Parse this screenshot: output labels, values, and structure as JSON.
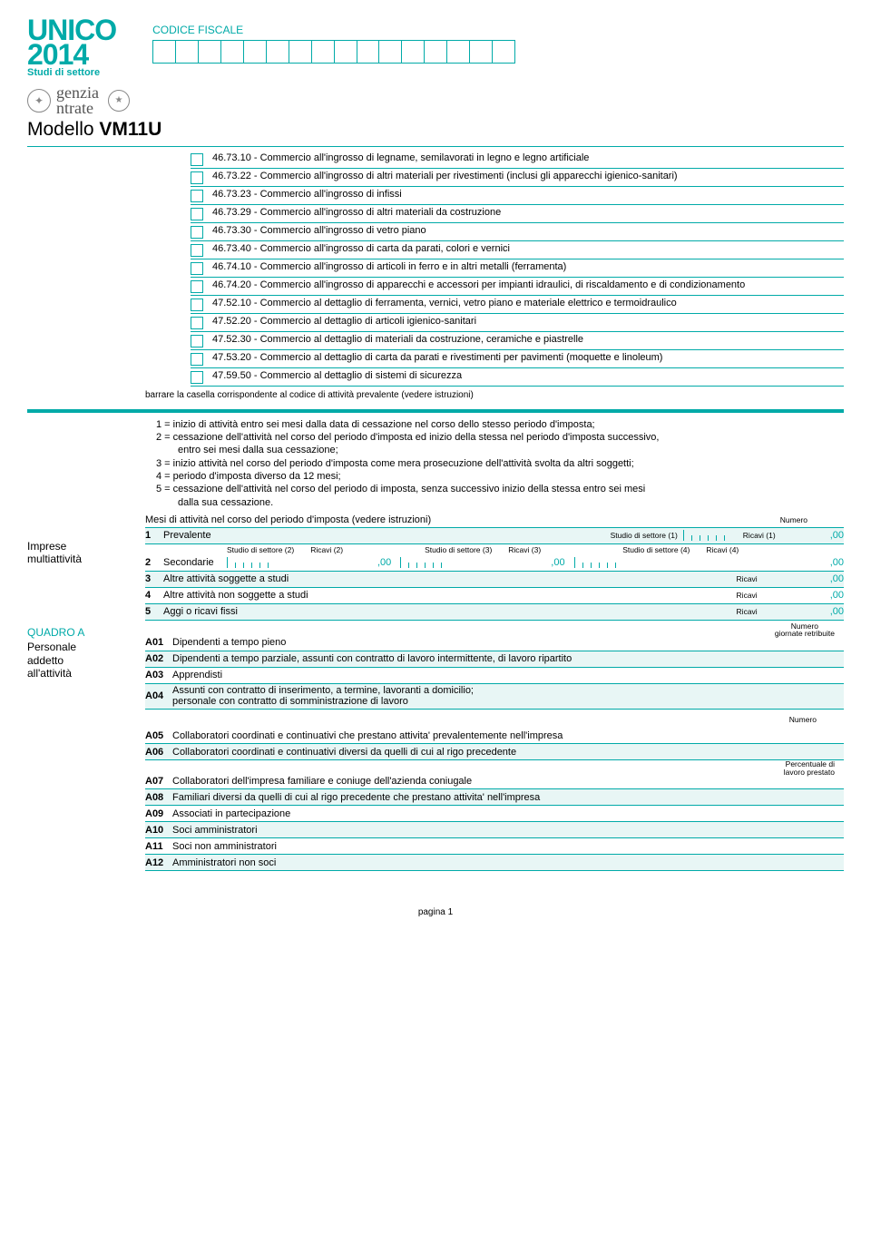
{
  "colors": {
    "teal": "#00aaa8",
    "shade": "#e8f6f5"
  },
  "header": {
    "unico": "UNICO",
    "year": "2014",
    "sub": "Studi di settore",
    "codfisc_label": "CODICE FISCALE",
    "codfisc_cells": 16,
    "agenzia_top": "genzia",
    "agenzia_bottom": "ntrate",
    "modello_prefix": "Modello ",
    "modello_code": "VM11U"
  },
  "activities": [
    "46.73.10 - Commercio all'ingrosso di legname, semilavorati in legno e legno artificiale",
    "46.73.22 - Commercio all'ingrosso di altri materiali per rivestimenti (inclusi gli apparecchi igienico-sanitari)",
    "46.73.23 - Commercio all'ingrosso di infissi",
    "46.73.29 - Commercio all'ingrosso di altri materiali da costruzione",
    "46.73.30 - Commercio all'ingrosso di vetro piano",
    "46.73.40 - Commercio all'ingrosso di carta da parati, colori e vernici",
    "46.74.10 - Commercio all'ingrosso di articoli in ferro e in altri metalli (ferramenta)",
    "46.74.20 - Commercio all'ingrosso di apparecchi e accessori per impianti idraulici, di riscaldamento e di condizionamento",
    "47.52.10 - Commercio al dettaglio di ferramenta, vernici, vetro piano e materiale elettrico e termoidraulico",
    "47.52.20 - Commercio al dettaglio di articoli igienico-sanitari",
    "47.52.30 - Commercio al dettaglio di materiali da costruzione, ceramiche e piastrelle",
    "47.53.20 - Commercio al dettaglio di carta da parati e rivestimenti per pavimenti (moquette e linoleum)",
    "47.59.50 - Commercio al dettaglio di sistemi di sicurezza"
  ],
  "barrare": "barrare la casella corrispondente al codice di attività prevalente (vedere istruzioni)",
  "legend": [
    "1 = inizio di attività entro sei mesi dalla data di cessazione nel corso dello stesso periodo d'imposta;",
    "2 = cessazione dell'attività nel corso del periodo d'imposta ed inizio della stessa nel periodo d'imposta successivo,",
    "      entro sei mesi dalla sua cessazione;",
    "3 = inizio attività nel corso del periodo d'imposta come mera prosecuzione dell'attività svolta da altri soggetti;",
    "4 = periodo d'imposta diverso da 12 mesi;",
    "5 = cessazione dell'attività nel corso del periodo di imposta, senza successivo inizio della stessa entro sei mesi",
    "      dalla sua cessazione."
  ],
  "mesi_label": "Mesi di attività nel corso del periodo d'imposta (vedere istruzioni)",
  "numero_label": "Numero",
  "imprese": {
    "title_a": "Imprese",
    "title_b": "multiattività",
    "rows": [
      {
        "n": "1",
        "label": "Prevalente",
        "r1_studio": "Studio di settore (1)",
        "r1_ricavi": "Ricavi (1)"
      },
      {
        "n": "2",
        "label": "Secondarie"
      },
      {
        "n": "3",
        "label": "Altre attività soggette a studi",
        "tail": "Ricavi"
      },
      {
        "n": "4",
        "label": "Altre attività non soggette a studi",
        "tail": "Ricavi"
      },
      {
        "n": "5",
        "label": "Aggi o ricavi fissi",
        "tail": "Ricavi"
      }
    ],
    "hdr2": {
      "s2": "Studio di settore (2)",
      "r2": "Ricavi (2)",
      "s3": "Studio di settore (3)",
      "r3": "Ricavi (3)",
      "s4": "Studio di settore (4)",
      "r4": "Ricavi (4)"
    },
    "suffix": ",00"
  },
  "quadroA": {
    "title": "QUADRO A",
    "sub1": "Personale",
    "sub2": "addetto",
    "sub3": "all'attività",
    "num_gior": "Numero\ngiornate retribuite",
    "rows1": [
      {
        "code": "A01",
        "label": "Dipendenti a tempo pieno"
      },
      {
        "code": "A02",
        "label": "Dipendenti a tempo parziale, assunti con contratto di lavoro intermittente, di lavoro ripartito"
      },
      {
        "code": "A03",
        "label": "Apprendisti"
      },
      {
        "code": "A04",
        "label": "Assunti con contratto di inserimento, a termine, lavoranti a domicilio;\npersonale con contratto di somministrazione di lavoro"
      }
    ],
    "numero": "Numero",
    "rows2": [
      {
        "code": "A05",
        "label": "Collaboratori coordinati e continuativi che prestano attivita' prevalentemente nell'impresa"
      },
      {
        "code": "A06",
        "label": "Collaboratori coordinati e continuativi diversi da quelli di cui al rigo precedente"
      }
    ],
    "perc": "Percentuale di\nlavoro prestato",
    "rows3": [
      {
        "code": "A07",
        "label": "Collaboratori dell'impresa familiare e coniuge dell'azienda coniugale"
      },
      {
        "code": "A08",
        "label": "Familiari diversi da quelli di cui al rigo precedente che prestano attivita' nell'impresa"
      },
      {
        "code": "A09",
        "label": "Associati in partecipazione"
      },
      {
        "code": "A10",
        "label": "Soci amministratori"
      },
      {
        "code": "A11",
        "label": "Soci non amministratori"
      },
      {
        "code": "A12",
        "label": "Amministratori non soci"
      }
    ]
  },
  "footer": "pagina 1"
}
